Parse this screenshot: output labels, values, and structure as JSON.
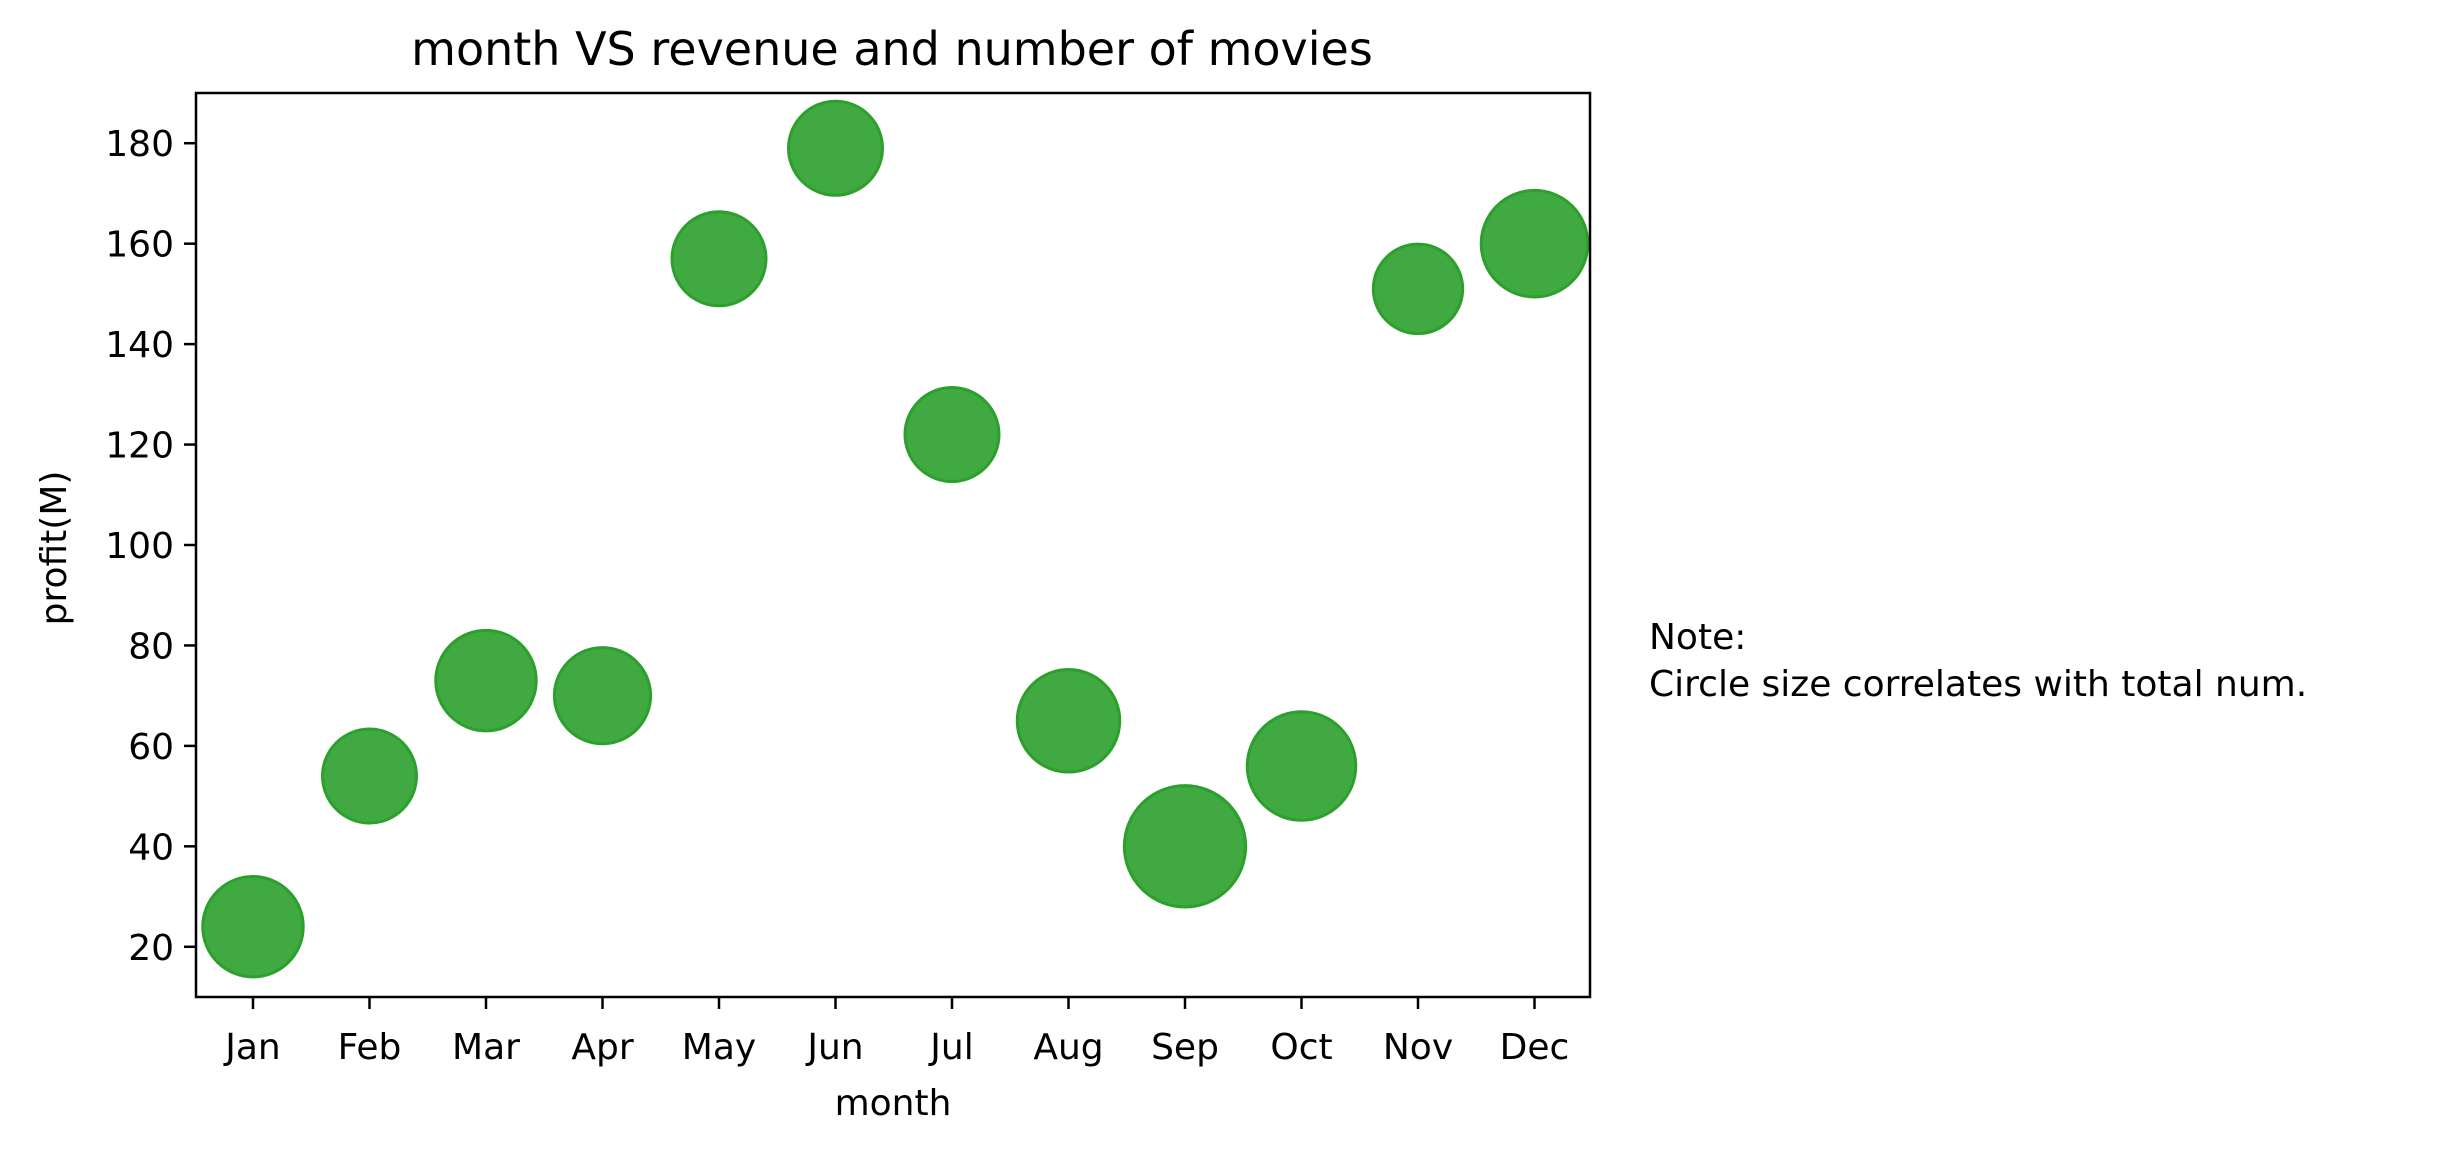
{
  "chart_data": {
    "type": "scatter",
    "title": "month VS revenue and number of movies",
    "xlabel": "month",
    "ylabel": "profit(M)",
    "categories": [
      "Jan",
      "Feb",
      "Mar",
      "Apr",
      "May",
      "Jun",
      "Jul",
      "Aug",
      "Sep",
      "Oct",
      "Nov",
      "Dec"
    ],
    "y": [
      24,
      54,
      73,
      70,
      157,
      179,
      122,
      65,
      40,
      56,
      151,
      160
    ],
    "size": [
      1200,
      1050,
      1200,
      1100,
      1050,
      1050,
      1050,
      1250,
      1750,
      1400,
      950,
      1350
    ],
    "ylim": [
      10,
      190
    ],
    "yticks": [
      20,
      40,
      60,
      80,
      100,
      120,
      140,
      160,
      180
    ],
    "marker_color": "#2ca02c",
    "marker_alpha": 0.9,
    "grid": false,
    "note": {
      "line1": "Note:",
      "line2": "Circle size correlates with total num."
    }
  }
}
